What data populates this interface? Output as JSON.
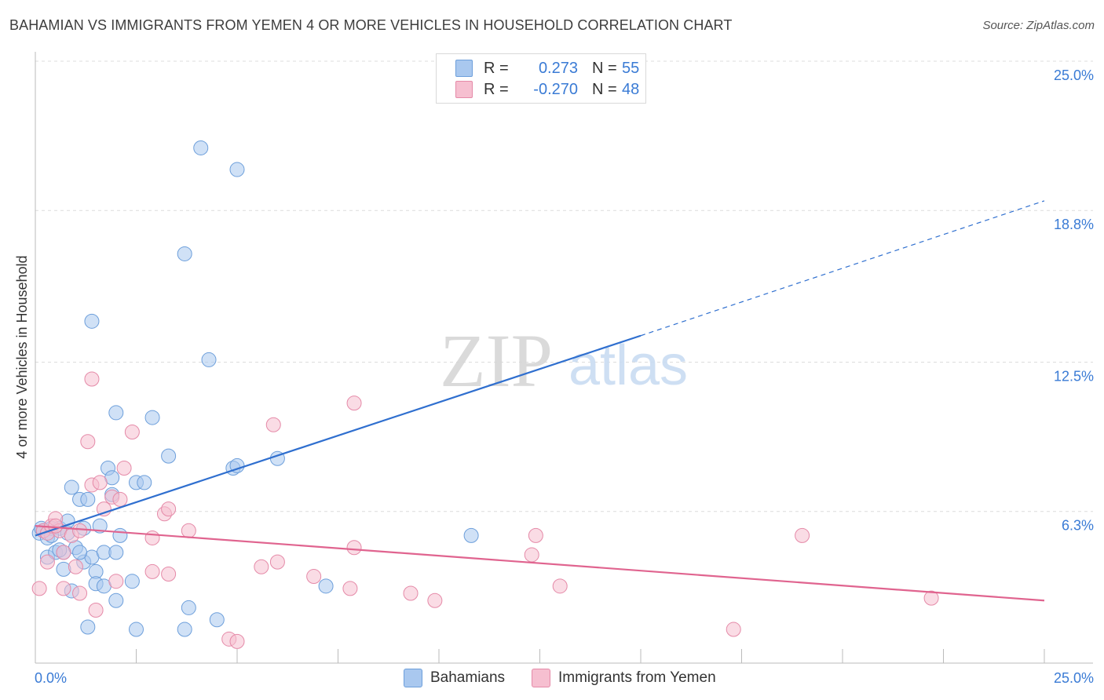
{
  "header": {
    "title": "BAHAMIAN VS IMMIGRANTS FROM YEMEN 4 OR MORE VEHICLES IN HOUSEHOLD CORRELATION CHART",
    "source": "Source: ZipAtlas.com"
  },
  "watermark": {
    "zip": "ZIP",
    "atlas": "atlas"
  },
  "legend_top": {
    "rows": [
      {
        "r_label": "R =",
        "r_value": "0.273",
        "n_label": "N =",
        "n_value": "55",
        "color": "#a9c8ef",
        "stroke": "#6d9fdb"
      },
      {
        "r_label": "R =",
        "r_value": "-0.270",
        "n_label": "N =",
        "n_value": "48",
        "color": "#f6bfd0",
        "stroke": "#e58aa8"
      }
    ]
  },
  "legend_bottom": {
    "items": [
      {
        "label": "Bahamians",
        "color": "#a9c8ef",
        "stroke": "#6d9fdb"
      },
      {
        "label": "Immigrants from Yemen",
        "color": "#f6bfd0",
        "stroke": "#e58aa8"
      }
    ]
  },
  "chart_data": {
    "type": "scatter",
    "ylabel": "4 or more Vehicles in Household",
    "xlabel": "",
    "xlim": [
      0,
      25
    ],
    "ylim": [
      0,
      25
    ],
    "x_tick_labels": [
      "0.0%",
      "25.0%"
    ],
    "y_ticks": [
      6.3,
      12.5,
      18.8,
      25.0
    ],
    "y_tick_labels": [
      "6.3%",
      "12.5%",
      "18.8%",
      "25.0%"
    ],
    "grid": "horizontal dashed",
    "legend": "top-center and bottom",
    "series": [
      {
        "name": "Bahamians",
        "color": "#a9c8ef",
        "stroke": "#6d9fdb",
        "line_color": "#2f6fcf",
        "trend": {
          "x0": 0,
          "y0": 5.3,
          "x1": 15.0,
          "y1": 13.6,
          "x_dash_end": 25.0,
          "y_dash_end": 19.2
        },
        "points": [
          [
            0.1,
            5.4
          ],
          [
            0.2,
            5.5
          ],
          [
            0.3,
            5.2
          ],
          [
            0.4,
            5.6
          ],
          [
            0.3,
            4.4
          ],
          [
            0.5,
            4.6
          ],
          [
            0.6,
            5.6
          ],
          [
            0.7,
            4.6
          ],
          [
            0.8,
            5.4
          ],
          [
            0.7,
            3.9
          ],
          [
            0.8,
            5.9
          ],
          [
            0.9,
            3.0
          ],
          [
            0.9,
            7.3
          ],
          [
            1.0,
            4.8
          ],
          [
            1.1,
            6.8
          ],
          [
            1.2,
            5.6
          ],
          [
            1.2,
            4.2
          ],
          [
            1.3,
            6.8
          ],
          [
            1.3,
            1.5
          ],
          [
            1.4,
            4.4
          ],
          [
            1.4,
            14.2
          ],
          [
            1.5,
            3.8
          ],
          [
            1.5,
            3.3
          ],
          [
            1.6,
            5.7
          ],
          [
            1.7,
            4.6
          ],
          [
            1.7,
            3.2
          ],
          [
            1.8,
            8.1
          ],
          [
            1.9,
            7.0
          ],
          [
            2.0,
            4.6
          ],
          [
            2.0,
            10.4
          ],
          [
            2.0,
            2.6
          ],
          [
            2.1,
            5.3
          ],
          [
            2.4,
            3.4
          ],
          [
            2.5,
            1.4
          ],
          [
            2.5,
            7.5
          ],
          [
            2.7,
            7.5
          ],
          [
            2.9,
            10.2
          ],
          [
            3.3,
            8.6
          ],
          [
            3.7,
            1.4
          ],
          [
            3.7,
            17.0
          ],
          [
            3.8,
            2.3
          ],
          [
            4.1,
            21.4
          ],
          [
            4.3,
            12.6
          ],
          [
            4.5,
            1.8
          ],
          [
            4.9,
            8.1
          ],
          [
            5.0,
            8.2
          ],
          [
            5.0,
            20.5
          ],
          [
            6.0,
            8.5
          ],
          [
            7.2,
            3.2
          ],
          [
            10.8,
            5.3
          ],
          [
            0.15,
            5.6
          ],
          [
            0.6,
            4.7
          ],
          [
            1.1,
            4.6
          ],
          [
            1.9,
            7.7
          ],
          [
            0.4,
            5.3
          ]
        ]
      },
      {
        "name": "Immigrants from Yemen",
        "color": "#f6bfd0",
        "stroke": "#e58aa8",
        "line_color": "#e0648f",
        "trend": {
          "x0": 0,
          "y0": 5.7,
          "x1": 25.0,
          "y1": 2.6
        },
        "points": [
          [
            0.1,
            3.1
          ],
          [
            0.2,
            5.5
          ],
          [
            0.3,
            5.4
          ],
          [
            0.3,
            4.2
          ],
          [
            0.4,
            5.7
          ],
          [
            0.5,
            6.0
          ],
          [
            0.6,
            5.5
          ],
          [
            0.7,
            4.6
          ],
          [
            0.7,
            3.1
          ],
          [
            0.9,
            5.3
          ],
          [
            1.0,
            4.0
          ],
          [
            1.1,
            2.9
          ],
          [
            1.1,
            5.5
          ],
          [
            1.3,
            9.2
          ],
          [
            1.4,
            11.8
          ],
          [
            1.4,
            7.4
          ],
          [
            1.5,
            2.2
          ],
          [
            1.6,
            7.5
          ],
          [
            1.7,
            6.4
          ],
          [
            1.9,
            6.9
          ],
          [
            2.0,
            3.4
          ],
          [
            2.1,
            6.8
          ],
          [
            2.2,
            8.1
          ],
          [
            2.4,
            9.6
          ],
          [
            2.9,
            5.2
          ],
          [
            2.9,
            3.8
          ],
          [
            3.2,
            6.2
          ],
          [
            3.3,
            6.4
          ],
          [
            3.3,
            3.7
          ],
          [
            3.8,
            5.5
          ],
          [
            4.8,
            1.0
          ],
          [
            5.0,
            0.9
          ],
          [
            5.6,
            4.0
          ],
          [
            5.9,
            9.9
          ],
          [
            6.0,
            4.2
          ],
          [
            6.9,
            3.6
          ],
          [
            7.8,
            3.1
          ],
          [
            7.9,
            10.8
          ],
          [
            7.9,
            4.8
          ],
          [
            9.3,
            2.9
          ],
          [
            9.9,
            2.6
          ],
          [
            12.3,
            4.5
          ],
          [
            12.4,
            5.3
          ],
          [
            13.0,
            3.2
          ],
          [
            17.3,
            1.4
          ],
          [
            19.0,
            5.3
          ],
          [
            22.2,
            2.7
          ],
          [
            0.5,
            5.7
          ]
        ]
      }
    ]
  }
}
